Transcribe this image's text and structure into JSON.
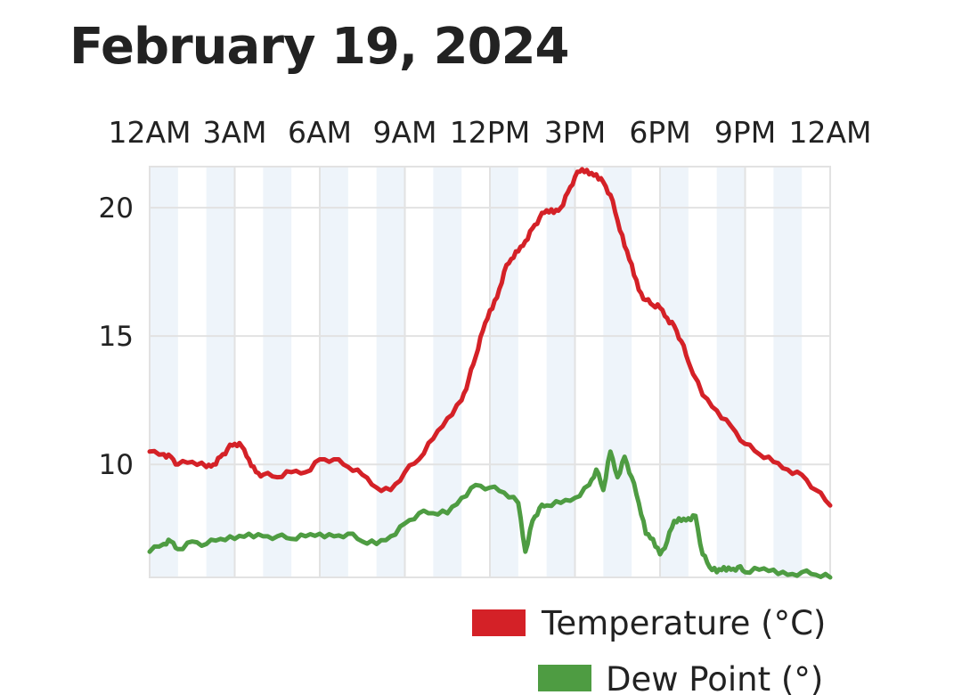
{
  "title": "February 19, 2024",
  "colors": {
    "temperature": "#d42127",
    "dew_point": "#4e9c42",
    "band": "#eef4fa",
    "grid": "#e2e2e2"
  },
  "chart_data": {
    "type": "line",
    "title": "February 19, 2024",
    "xlabel": "",
    "ylabel": "",
    "x_unit": "hours since 12AM",
    "xlim": [
      0,
      24
    ],
    "ylim": [
      5.6,
      21.6
    ],
    "x_tick_labels": [
      "12AM",
      "3AM",
      "6AM",
      "9AM",
      "12PM",
      "3PM",
      "6PM",
      "9PM",
      "12AM"
    ],
    "x_tick_values": [
      0,
      3,
      6,
      9,
      12,
      15,
      18,
      21,
      24
    ],
    "y_ticks": [
      10,
      15,
      20
    ],
    "grid": true,
    "legend": "bottom-right",
    "series": [
      {
        "name": "Temperature (°C)",
        "color": "#d42127",
        "x": [
          0,
          0.5,
          0.75,
          1,
          1.5,
          2,
          2.25,
          2.5,
          2.75,
          3,
          3.25,
          3.5,
          3.75,
          4,
          4.5,
          5,
          5.5,
          6,
          6.5,
          7,
          7.5,
          8,
          8.5,
          9,
          9.5,
          10,
          10.5,
          11,
          11.25,
          11.5,
          11.75,
          12,
          12.25,
          12.5,
          12.75,
          13,
          13.25,
          13.5,
          13.75,
          14,
          14.25,
          14.5,
          14.75,
          15,
          15.25,
          15.5,
          15.75,
          16,
          16.25,
          16.5,
          16.75,
          17,
          17.25,
          17.5,
          17.75,
          18,
          18.25,
          18.5,
          18.75,
          19,
          19.5,
          20,
          20.5,
          21,
          21.5,
          22,
          22.5,
          23,
          23.5,
          24
        ],
        "values": [
          10.5,
          10.4,
          10.3,
          10.0,
          10.1,
          9.9,
          10.0,
          10.3,
          10.6,
          10.8,
          10.7,
          10.2,
          9.7,
          9.6,
          9.5,
          9.7,
          9.7,
          10.2,
          10.2,
          9.9,
          9.6,
          9.1,
          9.0,
          9.7,
          10.2,
          11.0,
          11.8,
          12.5,
          13.3,
          14.2,
          15.2,
          16.0,
          16.5,
          17.5,
          18.0,
          18.3,
          18.7,
          19.2,
          19.6,
          19.9,
          19.8,
          20.0,
          20.6,
          21.2,
          21.5,
          21.3,
          21.3,
          21.0,
          20.5,
          19.5,
          18.5,
          17.8,
          16.8,
          16.4,
          16.2,
          16.1,
          15.7,
          15.4,
          14.8,
          14.0,
          12.7,
          12.1,
          11.5,
          10.8,
          10.4,
          10.1,
          9.8,
          9.6,
          9.0,
          8.4
        ]
      },
      {
        "name": "Dew Point (°)",
        "color": "#4e9c42",
        "x": [
          0,
          0.5,
          0.75,
          1,
          1.5,
          2,
          2.5,
          3,
          3.5,
          4,
          4.5,
          5,
          5.5,
          6,
          6.5,
          7,
          7.5,
          8,
          8.5,
          9,
          9.5,
          10,
          10.5,
          11,
          11.5,
          12,
          12.5,
          13,
          13.25,
          13.5,
          13.75,
          14,
          14.5,
          15,
          15.5,
          15.75,
          16,
          16.25,
          16.5,
          16.75,
          17,
          17.25,
          17.5,
          17.75,
          18,
          18.25,
          18.5,
          18.75,
          19,
          19.25,
          19.5,
          19.75,
          20,
          20.25,
          20.5,
          20.75,
          21,
          21.5,
          22,
          22.5,
          23,
          23.5,
          24
        ],
        "values": [
          6.6,
          6.9,
          7.0,
          6.7,
          7.0,
          6.9,
          7.1,
          7.1,
          7.3,
          7.2,
          7.2,
          7.1,
          7.2,
          7.3,
          7.2,
          7.3,
          7.0,
          6.9,
          7.2,
          7.7,
          8.1,
          8.1,
          8.1,
          8.7,
          9.2,
          9.1,
          8.9,
          8.5,
          6.6,
          7.8,
          8.3,
          8.4,
          8.5,
          8.7,
          9.2,
          9.8,
          9.0,
          10.5,
          9.5,
          10.3,
          9.5,
          8.5,
          7.3,
          7.1,
          6.5,
          7.0,
          7.8,
          7.8,
          7.9,
          8.0,
          6.5,
          6.0,
          5.8,
          6.0,
          5.9,
          6.0,
          5.8,
          5.9,
          5.9,
          5.7,
          5.8,
          5.7,
          5.6
        ]
      }
    ]
  }
}
